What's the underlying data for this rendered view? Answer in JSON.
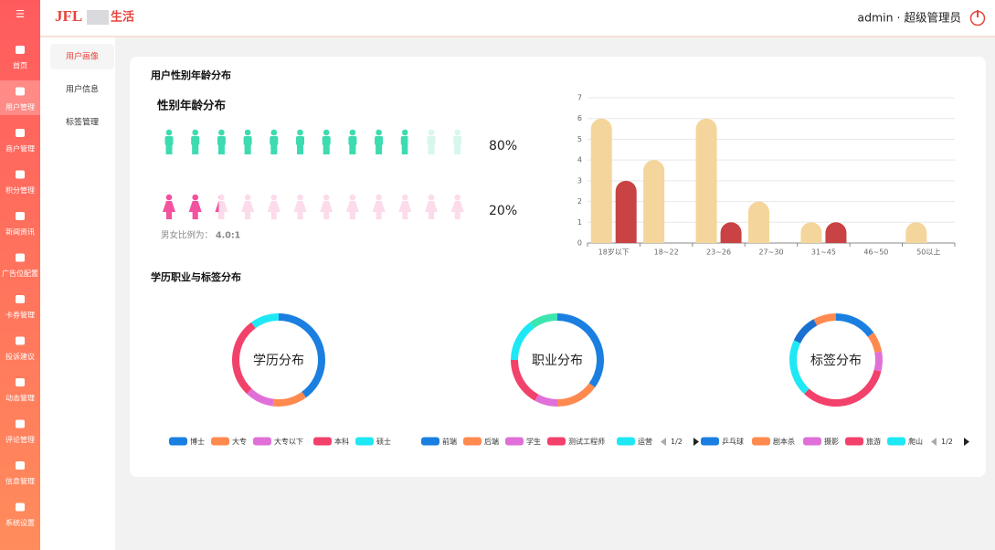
{
  "header": {
    "brand": "生活",
    "user": "admin · 超级管理员"
  },
  "sidebar": [
    "首页",
    "用户管理",
    "商户管理",
    "积分管理",
    "新闻资讯",
    "广告位配置",
    "卡券管理",
    "投诉建议",
    "动态管理",
    "评论管理",
    "信息管理",
    "系统设置"
  ],
  "subnav": [
    "用户画像",
    "用户信息",
    "标签管理"
  ],
  "card_title": "用户性别年龄分布",
  "section_title": "学历职业与标签分布",
  "chart_data": [
    {
      "type": "pictogram",
      "title": "性别年龄分布",
      "series": [
        {
          "color": "#3ddbb0",
          "values": [
            80
          ],
          "value_labels": [
            "80%"
          ]
        },
        {
          "color": "#f2529e",
          "values": [
            20
          ],
          "value_labels": [
            "20%"
          ]
        }
      ],
      "ratio_label": "男女比例为：",
      "ratio_value": "4.0:1"
    },
    {
      "type": "bar",
      "categories": [
        "18岁以下",
        "18~22",
        "23~26",
        "27~30",
        "31~45",
        "46~50",
        "50以上"
      ],
      "series": [
        {
          "color": "#f4d59b",
          "values": [
            6,
            4,
            6,
            2,
            1,
            0,
            1
          ]
        },
        {
          "color": "#c94244",
          "values": [
            3,
            0,
            1,
            0,
            1,
            0,
            0
          ]
        }
      ],
      "ylim": [
        0,
        7
      ],
      "yticks": [
        0,
        1,
        2,
        3,
        4,
        5,
        6,
        7
      ],
      "grid": true
    },
    {
      "type": "pie",
      "title": "学历分布",
      "categories": [
        "博士",
        "大专",
        "大专以下",
        "本科",
        "硕士"
      ],
      "values": [
        40,
        12,
        10,
        28,
        10
      ],
      "colors": [
        "#1a7fe0",
        "#ff8a4f",
        "#e070d8",
        "#f2416a",
        "#1fe8f5"
      ]
    },
    {
      "type": "pie",
      "title": "职业分布",
      "categories": [
        "前端",
        "后端",
        "学生",
        "测试工程师",
        "运营",
        null
      ],
      "values": [
        35,
        15,
        8,
        17,
        15,
        10
      ],
      "colors": [
        "#1a7fe0",
        "#ff8a4f",
        "#e070d8",
        "#f2416a",
        "#1fe8f5",
        "#3de6b0"
      ],
      "pager": "1/2"
    },
    {
      "type": "pie",
      "title": "标签分布",
      "categories": [
        "乒乓球",
        "剧本杀",
        "摄影",
        "旅游",
        "爬山",
        null,
        null
      ],
      "values": [
        15,
        7,
        7,
        33,
        20,
        10,
        8
      ],
      "colors": [
        "#1a7fe0",
        "#ff8a4f",
        "#e070d8",
        "#f2416a",
        "#1fe8f5",
        "#1a6fd0",
        "#ff8a4f"
      ],
      "pager": "1/2"
    }
  ]
}
